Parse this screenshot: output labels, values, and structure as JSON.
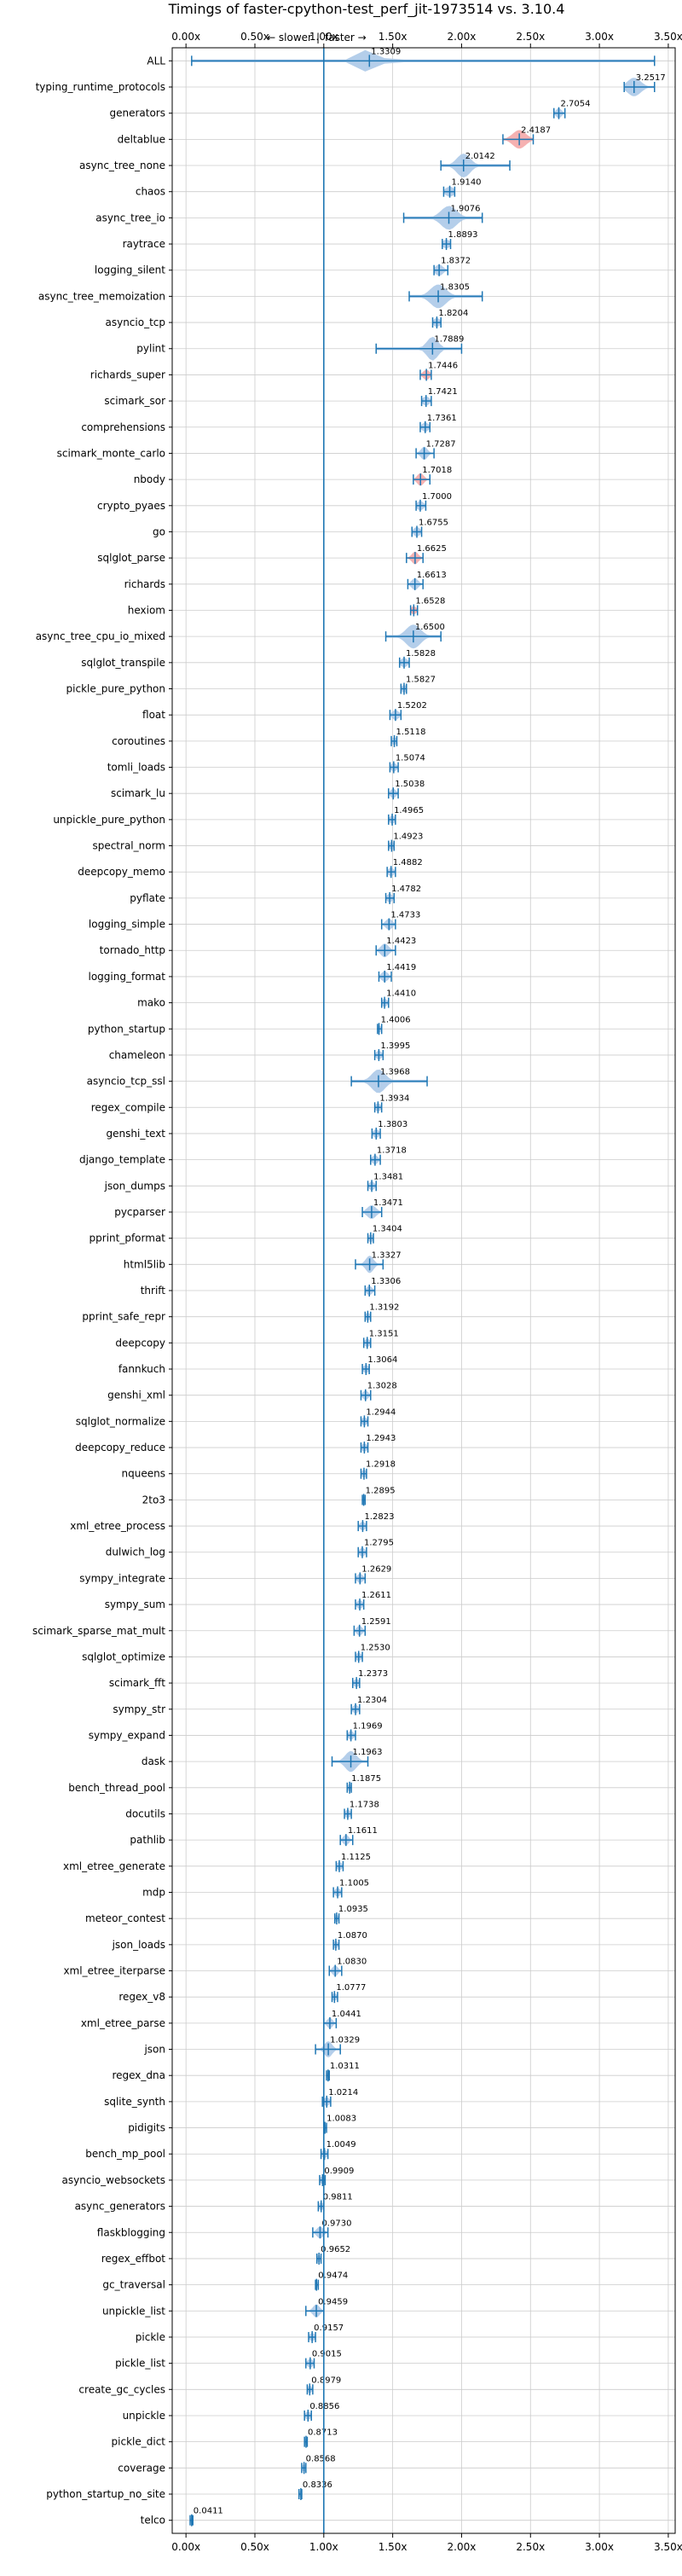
{
  "chart_data": {
    "type": "violin",
    "title": "Timings of faster-cpython-test_perf_jit-1973514 vs. 3.10.4",
    "direction_labels": {
      "slower": "← slower",
      "faster": "faster →",
      "separator": "|"
    },
    "xlim": [
      -0.1,
      3.55
    ],
    "xticks": [
      0.0,
      0.5,
      1.0,
      1.5,
      2.0,
      2.5,
      3.0,
      3.5
    ],
    "xtick_labels": [
      "0.00x",
      "0.50x",
      "1.00x",
      "1.50x",
      "2.00x",
      "2.50x",
      "3.00x",
      "3.50x"
    ],
    "reference_line": 1.0,
    "grid": true,
    "colors": {
      "violin": "#a7c6e6",
      "violin_highlight": "#f4a3a3",
      "line": "#1f77b4",
      "grid": "#cccccc",
      "axis": "#000000"
    },
    "benchmarks": [
      {
        "name": "ALL",
        "mean": 1.3309,
        "min": 0.0411,
        "max": 3.4,
        "spread": 0.16
      },
      {
        "name": "typing_runtime_protocols",
        "mean": 3.2517,
        "min": 3.18,
        "max": 3.4,
        "spread": 0.12
      },
      {
        "name": "generators",
        "mean": 2.7054,
        "min": 2.67,
        "max": 2.75,
        "spread": 0.05
      },
      {
        "name": "deltablue",
        "mean": 2.4187,
        "min": 2.3,
        "max": 2.52,
        "spread": 0.12,
        "highlight": true
      },
      {
        "name": "async_tree_none",
        "mean": 2.0142,
        "min": 1.85,
        "max": 2.35,
        "spread": 0.12
      },
      {
        "name": "chaos",
        "mean": 1.914,
        "min": 1.87,
        "max": 1.95,
        "spread": 0.08
      },
      {
        "name": "async_tree_io",
        "mean": 1.9076,
        "min": 1.58,
        "max": 2.15,
        "spread": 0.14
      },
      {
        "name": "raytrace",
        "mean": 1.8893,
        "min": 1.86,
        "max": 1.92,
        "spread": 0.07
      },
      {
        "name": "logging_silent",
        "mean": 1.8372,
        "min": 1.8,
        "max": 1.9,
        "spread": 0.07
      },
      {
        "name": "async_tree_memoization",
        "mean": 1.8305,
        "min": 1.62,
        "max": 2.15,
        "spread": 0.14
      },
      {
        "name": "asyncio_tcp",
        "mean": 1.8204,
        "min": 1.79,
        "max": 1.85,
        "spread": 0.06
      },
      {
        "name": "pylint",
        "mean": 1.7889,
        "min": 1.38,
        "max": 2.0,
        "spread": 0.1
      },
      {
        "name": "richards_super",
        "mean": 1.7446,
        "min": 1.7,
        "max": 1.78,
        "spread": 0.06,
        "highlight": true
      },
      {
        "name": "scimark_sor",
        "mean": 1.7421,
        "min": 1.71,
        "max": 1.78,
        "spread": 0.06
      },
      {
        "name": "comprehensions",
        "mean": 1.7361,
        "min": 1.7,
        "max": 1.77,
        "spread": 0.06
      },
      {
        "name": "scimark_monte_carlo",
        "mean": 1.7287,
        "min": 1.67,
        "max": 1.8,
        "spread": 0.06
      },
      {
        "name": "nbody",
        "mean": 1.7018,
        "min": 1.65,
        "max": 1.77,
        "spread": 0.06,
        "highlight": true
      },
      {
        "name": "crypto_pyaes",
        "mean": 1.7,
        "min": 1.67,
        "max": 1.74,
        "spread": 0.06
      },
      {
        "name": "go",
        "mean": 1.6755,
        "min": 1.64,
        "max": 1.71,
        "spread": 0.06
      },
      {
        "name": "sqlglot_parse",
        "mean": 1.6625,
        "min": 1.6,
        "max": 1.72,
        "spread": 0.06,
        "highlight": true
      },
      {
        "name": "richards",
        "mean": 1.6613,
        "min": 1.61,
        "max": 1.72,
        "spread": 0.06
      },
      {
        "name": "hexiom",
        "mean": 1.6528,
        "min": 1.63,
        "max": 1.68,
        "spread": 0.05,
        "highlight": true
      },
      {
        "name": "async_tree_cpu_io_mixed",
        "mean": 1.65,
        "min": 1.45,
        "max": 1.85,
        "spread": 0.13
      },
      {
        "name": "sqlglot_transpile",
        "mean": 1.5828,
        "min": 1.55,
        "max": 1.62,
        "spread": 0.06
      },
      {
        "name": "pickle_pure_python",
        "mean": 1.5827,
        "min": 1.56,
        "max": 1.6,
        "spread": 0.05
      },
      {
        "name": "float",
        "mean": 1.5202,
        "min": 1.48,
        "max": 1.56,
        "spread": 0.06
      },
      {
        "name": "coroutines",
        "mean": 1.5118,
        "min": 1.49,
        "max": 1.53,
        "spread": 0.05
      },
      {
        "name": "tomli_loads",
        "mean": 1.5074,
        "min": 1.48,
        "max": 1.54,
        "spread": 0.05
      },
      {
        "name": "scimark_lu",
        "mean": 1.5038,
        "min": 1.47,
        "max": 1.54,
        "spread": 0.05
      },
      {
        "name": "unpickle_pure_python",
        "mean": 1.4965,
        "min": 1.47,
        "max": 1.52,
        "spread": 0.05
      },
      {
        "name": "spectral_norm",
        "mean": 1.4923,
        "min": 1.47,
        "max": 1.51,
        "spread": 0.05
      },
      {
        "name": "deepcopy_memo",
        "mean": 1.4882,
        "min": 1.46,
        "max": 1.52,
        "spread": 0.05
      },
      {
        "name": "pyflate",
        "mean": 1.4782,
        "min": 1.45,
        "max": 1.51,
        "spread": 0.05
      },
      {
        "name": "logging_simple",
        "mean": 1.4733,
        "min": 1.42,
        "max": 1.52,
        "spread": 0.06
      },
      {
        "name": "tornado_http",
        "mean": 1.4423,
        "min": 1.38,
        "max": 1.52,
        "spread": 0.07
      },
      {
        "name": "logging_format",
        "mean": 1.4419,
        "min": 1.4,
        "max": 1.49,
        "spread": 0.06
      },
      {
        "name": "mako",
        "mean": 1.441,
        "min": 1.42,
        "max": 1.47,
        "spread": 0.05
      },
      {
        "name": "python_startup",
        "mean": 1.4006,
        "min": 1.39,
        "max": 1.42,
        "spread": 0.04
      },
      {
        "name": "chameleon",
        "mean": 1.3995,
        "min": 1.37,
        "max": 1.43,
        "spread": 0.05
      },
      {
        "name": "asyncio_tcp_ssl",
        "mean": 1.3968,
        "min": 1.2,
        "max": 1.75,
        "spread": 0.12
      },
      {
        "name": "regex_compile",
        "mean": 1.3934,
        "min": 1.37,
        "max": 1.42,
        "spread": 0.05
      },
      {
        "name": "genshi_text",
        "mean": 1.3803,
        "min": 1.35,
        "max": 1.41,
        "spread": 0.05
      },
      {
        "name": "django_template",
        "mean": 1.3718,
        "min": 1.34,
        "max": 1.41,
        "spread": 0.05
      },
      {
        "name": "json_dumps",
        "mean": 1.3481,
        "min": 1.32,
        "max": 1.38,
        "spread": 0.05
      },
      {
        "name": "pycparser",
        "mean": 1.3471,
        "min": 1.28,
        "max": 1.42,
        "spread": 0.08
      },
      {
        "name": "pprint_pformat",
        "mean": 1.3404,
        "min": 1.32,
        "max": 1.36,
        "spread": 0.05
      },
      {
        "name": "html5lib",
        "mean": 1.3327,
        "min": 1.23,
        "max": 1.43,
        "spread": 0.07
      },
      {
        "name": "thrift",
        "mean": 1.3306,
        "min": 1.3,
        "max": 1.37,
        "spread": 0.05
      },
      {
        "name": "pprint_safe_repr",
        "mean": 1.3192,
        "min": 1.3,
        "max": 1.34,
        "spread": 0.05
      },
      {
        "name": "deepcopy",
        "mean": 1.3151,
        "min": 1.29,
        "max": 1.34,
        "spread": 0.05
      },
      {
        "name": "fannkuch",
        "mean": 1.3064,
        "min": 1.28,
        "max": 1.33,
        "spread": 0.05
      },
      {
        "name": "genshi_xml",
        "mean": 1.3028,
        "min": 1.27,
        "max": 1.34,
        "spread": 0.05
      },
      {
        "name": "sqlglot_normalize",
        "mean": 1.2944,
        "min": 1.27,
        "max": 1.32,
        "spread": 0.05
      },
      {
        "name": "deepcopy_reduce",
        "mean": 1.2943,
        "min": 1.27,
        "max": 1.32,
        "spread": 0.05
      },
      {
        "name": "nqueens",
        "mean": 1.2918,
        "min": 1.27,
        "max": 1.31,
        "spread": 0.05
      },
      {
        "name": "2to3",
        "mean": 1.2895,
        "min": 1.28,
        "max": 1.3,
        "spread": 0.04
      },
      {
        "name": "xml_etree_process",
        "mean": 1.2823,
        "min": 1.25,
        "max": 1.31,
        "spread": 0.05
      },
      {
        "name": "dulwich_log",
        "mean": 1.2795,
        "min": 1.25,
        "max": 1.31,
        "spread": 0.05
      },
      {
        "name": "sympy_integrate",
        "mean": 1.2629,
        "min": 1.23,
        "max": 1.3,
        "spread": 0.05
      },
      {
        "name": "sympy_sum",
        "mean": 1.2611,
        "min": 1.23,
        "max": 1.29,
        "spread": 0.05
      },
      {
        "name": "scimark_sparse_mat_mult",
        "mean": 1.2591,
        "min": 1.22,
        "max": 1.3,
        "spread": 0.05
      },
      {
        "name": "sqlglot_optimize",
        "mean": 1.253,
        "min": 1.23,
        "max": 1.28,
        "spread": 0.05
      },
      {
        "name": "scimark_fft",
        "mean": 1.2373,
        "min": 1.21,
        "max": 1.26,
        "spread": 0.05
      },
      {
        "name": "sympy_str",
        "mean": 1.2304,
        "min": 1.2,
        "max": 1.26,
        "spread": 0.05
      },
      {
        "name": "sympy_expand",
        "mean": 1.1969,
        "min": 1.17,
        "max": 1.23,
        "spread": 0.05
      },
      {
        "name": "dask",
        "mean": 1.1963,
        "min": 1.06,
        "max": 1.32,
        "spread": 0.1
      },
      {
        "name": "bench_thread_pool",
        "mean": 1.1875,
        "min": 1.17,
        "max": 1.2,
        "spread": 0.04
      },
      {
        "name": "docutils",
        "mean": 1.1738,
        "min": 1.15,
        "max": 1.2,
        "spread": 0.05
      },
      {
        "name": "pathlib",
        "mean": 1.1611,
        "min": 1.12,
        "max": 1.21,
        "spread": 0.05
      },
      {
        "name": "xml_etree_generate",
        "mean": 1.1125,
        "min": 1.09,
        "max": 1.14,
        "spread": 0.05
      },
      {
        "name": "mdp",
        "mean": 1.1005,
        "min": 1.07,
        "max": 1.13,
        "spread": 0.05
      },
      {
        "name": "meteor_contest",
        "mean": 1.0935,
        "min": 1.08,
        "max": 1.11,
        "spread": 0.04
      },
      {
        "name": "json_loads",
        "mean": 1.087,
        "min": 1.07,
        "max": 1.11,
        "spread": 0.04
      },
      {
        "name": "xml_etree_iterparse",
        "mean": 1.083,
        "min": 1.04,
        "max": 1.13,
        "spread": 0.05
      },
      {
        "name": "regex_v8",
        "mean": 1.0777,
        "min": 1.06,
        "max": 1.1,
        "spread": 0.04
      },
      {
        "name": "xml_etree_parse",
        "mean": 1.0441,
        "min": 1.0,
        "max": 1.09,
        "spread": 0.05
      },
      {
        "name": "json",
        "mean": 1.0329,
        "min": 0.94,
        "max": 1.12,
        "spread": 0.07
      },
      {
        "name": "regex_dna",
        "mean": 1.0311,
        "min": 1.02,
        "max": 1.04,
        "spread": 0.04
      },
      {
        "name": "sqlite_synth",
        "mean": 1.0214,
        "min": 0.99,
        "max": 1.05,
        "spread": 0.05
      },
      {
        "name": "pidigits",
        "mean": 1.0083,
        "min": 1.0,
        "max": 1.02,
        "spread": 0.04
      },
      {
        "name": "bench_mp_pool",
        "mean": 1.0049,
        "min": 0.98,
        "max": 1.03,
        "spread": 0.05
      },
      {
        "name": "asyncio_websockets",
        "mean": 0.9909,
        "min": 0.97,
        "max": 1.01,
        "spread": 0.05
      },
      {
        "name": "async_generators",
        "mean": 0.9811,
        "min": 0.96,
        "max": 1.0,
        "spread": 0.05
      },
      {
        "name": "flaskblogging",
        "mean": 0.973,
        "min": 0.92,
        "max": 1.03,
        "spread": 0.06
      },
      {
        "name": "regex_effbot",
        "mean": 0.9652,
        "min": 0.95,
        "max": 0.98,
        "spread": 0.04
      },
      {
        "name": "gc_traversal",
        "mean": 0.9474,
        "min": 0.94,
        "max": 0.96,
        "spread": 0.03
      },
      {
        "name": "unpickle_list",
        "mean": 0.9459,
        "min": 0.87,
        "max": 1.0,
        "spread": 0.06
      },
      {
        "name": "pickle",
        "mean": 0.9157,
        "min": 0.89,
        "max": 0.94,
        "spread": 0.05
      },
      {
        "name": "pickle_list",
        "mean": 0.9015,
        "min": 0.87,
        "max": 0.93,
        "spread": 0.05
      },
      {
        "name": "create_gc_cycles",
        "mean": 0.8979,
        "min": 0.88,
        "max": 0.92,
        "spread": 0.04
      },
      {
        "name": "unpickle",
        "mean": 0.8856,
        "min": 0.86,
        "max": 0.91,
        "spread": 0.05
      },
      {
        "name": "pickle_dict",
        "mean": 0.8713,
        "min": 0.86,
        "max": 0.88,
        "spread": 0.04
      },
      {
        "name": "coverage",
        "mean": 0.8568,
        "min": 0.84,
        "max": 0.87,
        "spread": 0.04
      },
      {
        "name": "python_startup_no_site",
        "mean": 0.8336,
        "min": 0.82,
        "max": 0.84,
        "spread": 0.03
      },
      {
        "name": "telco",
        "mean": 0.0411,
        "min": 0.03,
        "max": 0.05,
        "spread": 0.02
      }
    ]
  }
}
